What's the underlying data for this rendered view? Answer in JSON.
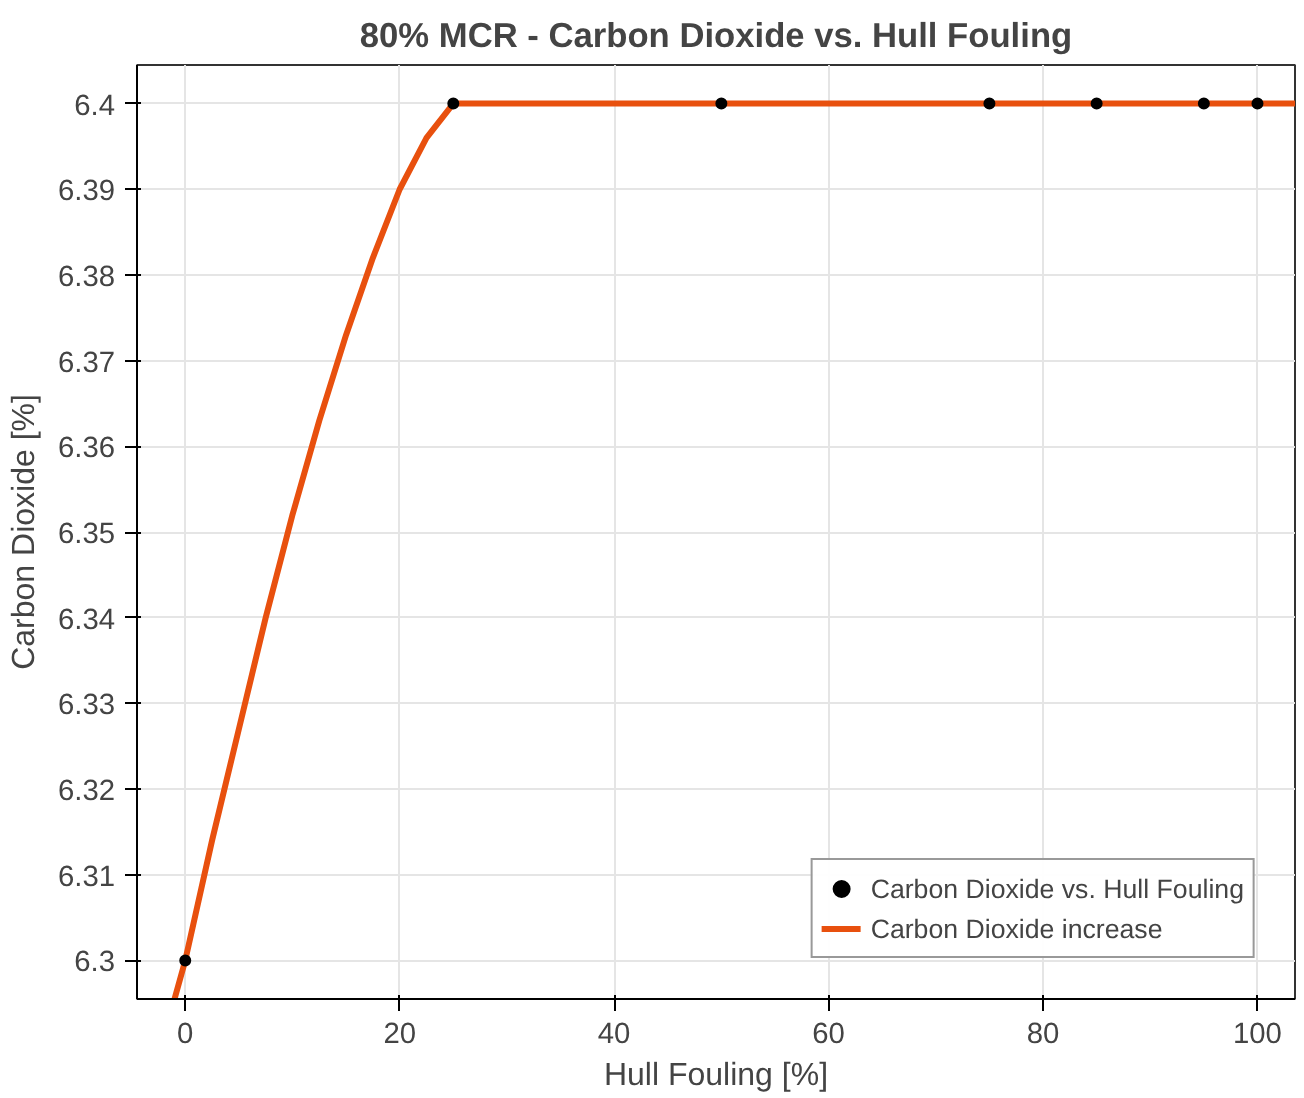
{
  "chart_data": {
    "type": "line",
    "title": "80% MCR - Carbon Dioxide vs. Hull Fouling",
    "xlabel": "Hull Fouling [%]",
    "ylabel": "Carbon Dioxide [%]",
    "xlim": [
      -4.5,
      103.5
    ],
    "ylim": [
      6.2955,
      6.4045
    ],
    "xticks": [
      0,
      20,
      40,
      60,
      80,
      100
    ],
    "yticks": [
      6.3,
      6.31,
      6.32,
      6.33,
      6.34,
      6.35,
      6.36,
      6.37,
      6.38,
      6.39,
      6.4
    ],
    "grid": true,
    "legend": "bottom right",
    "series": [
      {
        "name": "Carbon Dioxide vs. Hull Fouling",
        "type": "scatter",
        "marker": "circle",
        "color": "#000000",
        "x": [
          0,
          25,
          50,
          75,
          85,
          95,
          100
        ],
        "values": [
          6.3,
          6.4,
          6.4,
          6.4,
          6.4,
          6.4,
          6.4
        ]
      },
      {
        "name": "Carbon Dioxide increase",
        "line_style": "solid",
        "color": "#e8500e",
        "x": [
          -1,
          0,
          2.5,
          5,
          7.5,
          10,
          12.5,
          15,
          17.5,
          20,
          22.5,
          25,
          103.5
        ],
        "values": [
          6.2955,
          6.3,
          6.314,
          6.327,
          6.34,
          6.352,
          6.363,
          6.373,
          6.382,
          6.39,
          6.396,
          6.4,
          6.4
        ]
      }
    ]
  }
}
